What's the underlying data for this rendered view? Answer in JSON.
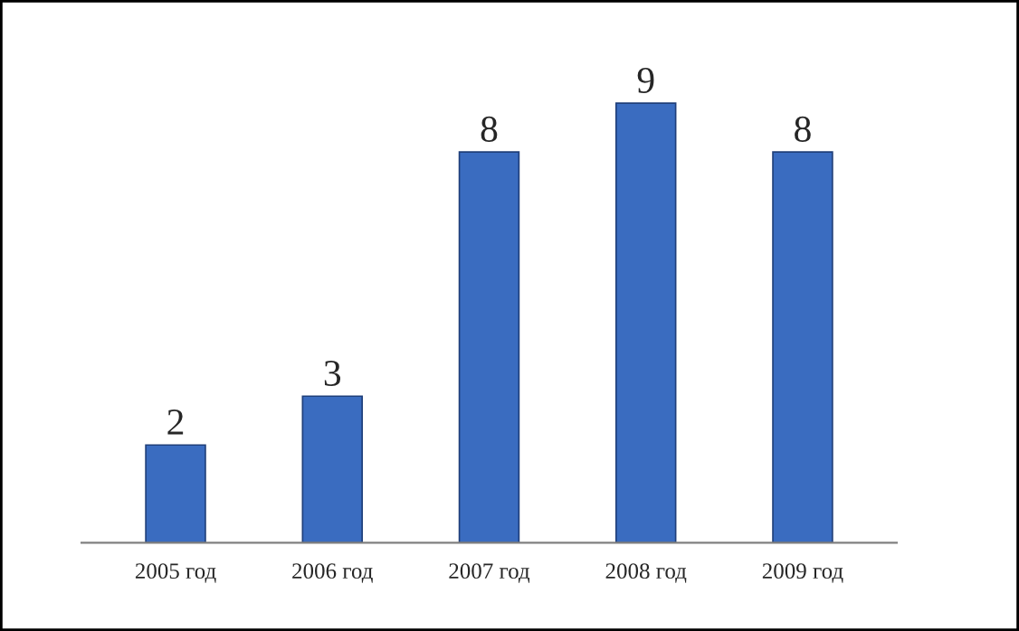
{
  "chart_data": {
    "type": "bar",
    "categories": [
      "2005 год",
      "2006 год",
      "2007 год",
      "2008 год",
      "2009 год"
    ],
    "values": [
      2,
      3,
      8,
      9,
      8
    ],
    "color": "#3a6cc0",
    "data_labels": true,
    "grid": false,
    "legend": false,
    "tick_labels": "x"
  }
}
